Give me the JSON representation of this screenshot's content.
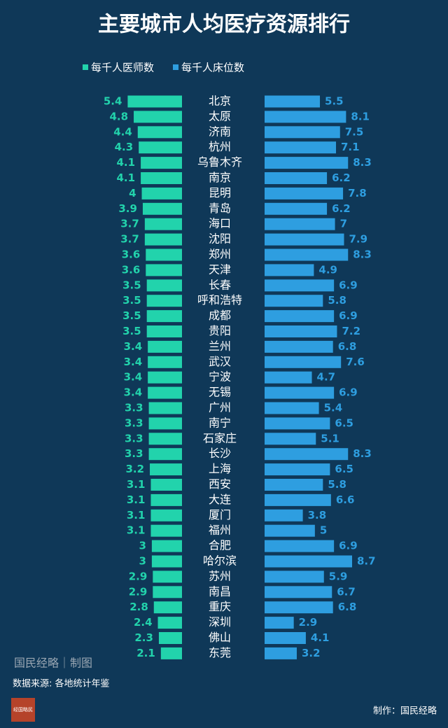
{
  "chart_data": {
    "type": "butterfly",
    "title": "主要城市人均医疗资源排行",
    "categories": [
      "北京",
      "太原",
      "济南",
      "杭州",
      "乌鲁木齐",
      "南京",
      "昆明",
      "青岛",
      "海口",
      "沈阳",
      "郑州",
      "天津",
      "长春",
      "呼和浩特",
      "成都",
      "贵阳",
      "兰州",
      "武汉",
      "宁波",
      "无锡",
      "广州",
      "南宁",
      "石家庄",
      "长沙",
      "上海",
      "西安",
      "大连",
      "厦门",
      "福州",
      "合肥",
      "哈尔滨",
      "苏州",
      "南昌",
      "重庆",
      "深圳",
      "佛山",
      "东莞"
    ],
    "series": [
      {
        "name": "每千人医师数",
        "color": "#22d3ac",
        "values": [
          5.4,
          4.8,
          4.4,
          4.3,
          4.1,
          4.1,
          4,
          3.9,
          3.7,
          3.7,
          3.6,
          3.6,
          3.5,
          3.5,
          3.5,
          3.5,
          3.4,
          3.4,
          3.4,
          3.4,
          3.3,
          3.3,
          3.3,
          3.3,
          3.2,
          3.1,
          3.1,
          3.1,
          3.1,
          3,
          3,
          2.9,
          2.9,
          2.8,
          2.4,
          2.3,
          2.1
        ]
      },
      {
        "name": "每千人床位数",
        "color": "#2e9ee0",
        "values": [
          5.5,
          8.1,
          7.5,
          7.1,
          8.3,
          6.2,
          7.8,
          6.2,
          7,
          7.9,
          8.3,
          4.9,
          6.9,
          5.8,
          6.9,
          7.2,
          6.8,
          7.6,
          4.7,
          6.9,
          5.4,
          6.5,
          5.1,
          8.3,
          6.5,
          5.8,
          6.6,
          3.8,
          5,
          6.9,
          8.7,
          5.9,
          6.7,
          6.8,
          2.9,
          4.1,
          3.2
        ]
      }
    ],
    "credit": "国民经略｜制图",
    "source": "数据来源: 各地统计年鉴",
    "maker": "制作：国民经略",
    "logo": "经国略民"
  }
}
